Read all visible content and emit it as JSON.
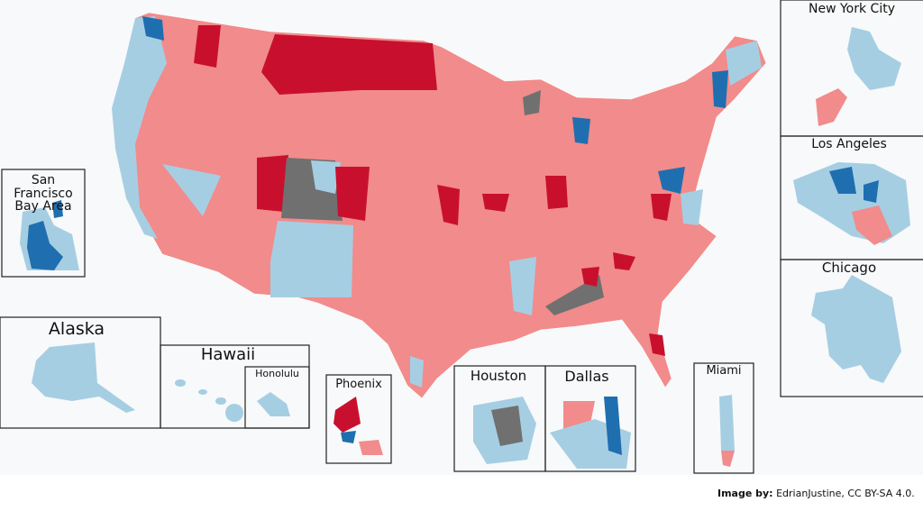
{
  "insets": {
    "new_york_city": "New York City",
    "los_angeles": "Los Angeles",
    "chicago": "Chicago",
    "san_francisco": "San Francisco Bay Area",
    "alaska": "Alaska",
    "hawaii": "Hawaii",
    "honolulu": "Honolulu",
    "phoenix": "Phoenix",
    "houston": "Houston",
    "dallas": "Dallas",
    "miami": "Miami"
  },
  "credit": {
    "label": "Image by:",
    "text": "EdrianJustine, CC BY-SA 4.0."
  }
}
